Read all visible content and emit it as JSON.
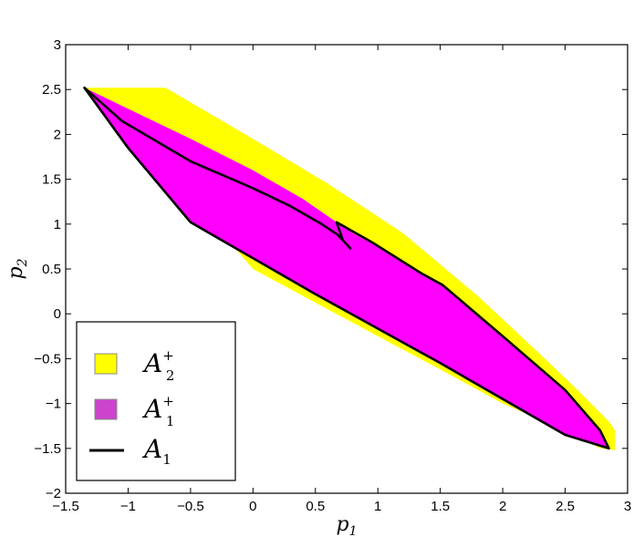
{
  "chart_data": {
    "type": "area",
    "xlabel": "p",
    "xlabel_sub": "1",
    "ylabel": "p",
    "ylabel_sub": "2",
    "xlim": [
      -1.5,
      3
    ],
    "ylim": [
      -2,
      3
    ],
    "xticks": [
      -1.5,
      -1,
      -0.5,
      0,
      0.5,
      1,
      1.5,
      2,
      2.5,
      3
    ],
    "xtick_labels": [
      "−1.5",
      "−1",
      "−0.5",
      "0",
      "0.5",
      "1",
      "1.5",
      "2",
      "2.5",
      "3"
    ],
    "yticks": [
      -2,
      -1.5,
      -1,
      -0.5,
      0,
      0.5,
      1,
      1.5,
      2,
      2.5,
      3
    ],
    "ytick_labels": [
      "−2",
      "−1.5",
      "−1",
      "−0.5",
      "0",
      "0.5",
      "1",
      "1.5",
      "2",
      "2.5",
      "3"
    ],
    "grid": false,
    "legend_position": "bottom-left",
    "series": [
      {
        "name": "A",
        "name_sup": "+",
        "name_sub": "2",
        "kind": "filled-region",
        "color": "#ffff00",
        "points": [
          [
            -1.35,
            2.52
          ],
          [
            -0.7,
            2.52
          ],
          [
            0.0,
            1.95
          ],
          [
            0.6,
            1.45
          ],
          [
            1.2,
            0.9
          ],
          [
            1.8,
            0.2
          ],
          [
            2.3,
            -0.45
          ],
          [
            2.6,
            -0.85
          ],
          [
            2.85,
            -1.2
          ],
          [
            2.9,
            -1.3
          ],
          [
            2.9,
            -1.52
          ],
          [
            2.78,
            -1.5
          ],
          [
            2.5,
            -1.3
          ],
          [
            2.0,
            -1.0
          ],
          [
            1.5,
            -0.62
          ],
          [
            1.0,
            -0.25
          ],
          [
            0.0,
            0.5
          ],
          [
            -1.0,
            2.1
          ],
          [
            -1.35,
            2.52
          ]
        ]
      },
      {
        "name": "A",
        "name_sup": "+",
        "name_sub": "1",
        "kind": "filled-region",
        "color": "#ff00ff",
        "points": [
          [
            -1.35,
            2.52
          ],
          [
            -0.5,
            1.95
          ],
          [
            0.0,
            1.6
          ],
          [
            0.4,
            1.28
          ],
          [
            0.67,
            1.02
          ],
          [
            0.8,
            0.9
          ],
          [
            1.0,
            0.75
          ],
          [
            1.52,
            0.32
          ],
          [
            2.0,
            -0.25
          ],
          [
            2.5,
            -0.85
          ],
          [
            2.78,
            -1.3
          ],
          [
            2.85,
            -1.5
          ],
          [
            2.5,
            -1.35
          ],
          [
            1.5,
            -0.55
          ],
          [
            0.5,
            0.22
          ],
          [
            -0.5,
            1.02
          ],
          [
            -1.0,
            1.85
          ],
          [
            -1.35,
            2.52
          ]
        ]
      },
      {
        "name": "A",
        "name_sub": "1",
        "kind": "boundary-line",
        "color": "#000000",
        "points": [
          [
            -1.35,
            2.52
          ],
          [
            -1.05,
            2.15
          ],
          [
            -0.5,
            1.7
          ],
          [
            0.0,
            1.4
          ],
          [
            0.3,
            1.2
          ],
          [
            0.55,
            1.0
          ],
          [
            0.68,
            0.88
          ],
          [
            0.78,
            0.73
          ],
          [
            0.72,
            0.82
          ],
          [
            0.67,
            1.02
          ],
          [
            0.95,
            0.8
          ],
          [
            1.35,
            0.45
          ],
          [
            1.52,
            0.32
          ],
          [
            2.0,
            -0.25
          ],
          [
            2.5,
            -0.85
          ],
          [
            2.78,
            -1.3
          ],
          [
            2.85,
            -1.5
          ],
          [
            2.5,
            -1.35
          ],
          [
            1.5,
            -0.55
          ],
          [
            0.5,
            0.22
          ],
          [
            -0.5,
            1.02
          ],
          [
            -1.0,
            1.85
          ],
          [
            -1.35,
            2.52
          ]
        ]
      }
    ]
  }
}
